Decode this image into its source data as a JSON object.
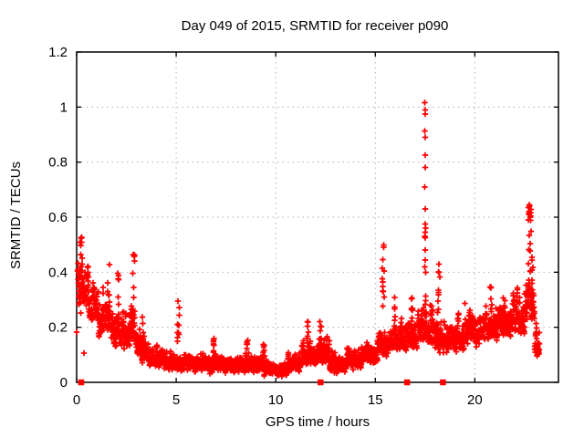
{
  "chart_data": {
    "type": "scatter",
    "title": "Day 049 of 2015, SRMTID for receiver p090",
    "xlabel": "GPS time / hours",
    "ylabel": "SRMTID / TECUs",
    "xlim": [
      0,
      24.2
    ],
    "ylim": [
      0,
      1.2
    ],
    "xticks": [
      0,
      5,
      10,
      15,
      20
    ],
    "xtick_labels": [
      "0",
      "5",
      "10",
      "15",
      "20"
    ],
    "yticks": [
      0,
      0.2,
      0.4,
      0.6,
      0.8,
      1.0,
      1.2
    ],
    "ytick_labels": [
      "0",
      "0.2",
      "0.4",
      "0.6",
      "0.8",
      "1",
      "1.2"
    ],
    "grid": "dashed",
    "legend": "none",
    "style": {
      "point_color": "#ff0000",
      "grid_color": "#b0b0b0",
      "border_color": "#000000",
      "text_color": "#000000",
      "background": "#ffffff",
      "marker": "plus",
      "zero_marker": "filled-square"
    },
    "scatter_model": {
      "seed": 42,
      "comment_band_segments": "each entry: [hour_start, hour_end, band_low_TECU, band_high_TECU, n_points]",
      "segments": [
        [
          0.05,
          0.6,
          0.26,
          0.5,
          70
        ],
        [
          0.6,
          1.1,
          0.2,
          0.42,
          70
        ],
        [
          1.1,
          1.7,
          0.14,
          0.38,
          80
        ],
        [
          1.7,
          2.3,
          0.11,
          0.33,
          80
        ],
        [
          2.3,
          3.0,
          0.1,
          0.34,
          90
        ],
        [
          3.0,
          3.6,
          0.07,
          0.22,
          80
        ],
        [
          3.6,
          4.4,
          0.05,
          0.16,
          100
        ],
        [
          4.4,
          5.4,
          0.04,
          0.13,
          120
        ],
        [
          5.4,
          6.4,
          0.035,
          0.12,
          120
        ],
        [
          6.4,
          7.4,
          0.03,
          0.12,
          120
        ],
        [
          7.4,
          8.4,
          0.03,
          0.11,
          120
        ],
        [
          8.4,
          9.4,
          0.03,
          0.12,
          120
        ],
        [
          9.4,
          10.6,
          0.02,
          0.09,
          140
        ],
        [
          10.6,
          11.3,
          0.03,
          0.12,
          90
        ],
        [
          11.3,
          12.1,
          0.05,
          0.17,
          100
        ],
        [
          12.1,
          12.7,
          0.05,
          0.19,
          70
        ],
        [
          12.7,
          13.5,
          0.03,
          0.12,
          100
        ],
        [
          13.5,
          14.3,
          0.04,
          0.14,
          100
        ],
        [
          14.3,
          15.1,
          0.06,
          0.18,
          100
        ],
        [
          15.1,
          15.7,
          0.08,
          0.22,
          70
        ],
        [
          15.7,
          16.5,
          0.1,
          0.26,
          90
        ],
        [
          16.5,
          17.3,
          0.11,
          0.3,
          90
        ],
        [
          17.3,
          17.9,
          0.12,
          0.35,
          70
        ],
        [
          17.9,
          18.7,
          0.09,
          0.3,
          90
        ],
        [
          18.7,
          19.5,
          0.1,
          0.28,
          90
        ],
        [
          19.5,
          20.3,
          0.12,
          0.3,
          90
        ],
        [
          20.3,
          21.1,
          0.13,
          0.32,
          90
        ],
        [
          21.1,
          21.9,
          0.15,
          0.34,
          90
        ],
        [
          21.9,
          22.5,
          0.16,
          0.36,
          70
        ],
        [
          22.5,
          23.0,
          0.2,
          0.42,
          60
        ],
        [
          23.0,
          23.25,
          0.08,
          0.25,
          30
        ]
      ],
      "comment_bursts": "each entry: [hour_center, width_hours, top_TECU, n_points]",
      "bursts": [
        [
          0.2,
          0.18,
          0.55,
          14
        ],
        [
          1.6,
          0.12,
          0.43,
          10
        ],
        [
          2.1,
          0.1,
          0.4,
          8
        ],
        [
          2.85,
          0.12,
          0.47,
          10
        ],
        [
          3.3,
          0.1,
          0.26,
          8
        ],
        [
          5.1,
          0.12,
          0.3,
          10
        ],
        [
          6.9,
          0.1,
          0.19,
          8
        ],
        [
          8.6,
          0.1,
          0.17,
          8
        ],
        [
          9.4,
          0.08,
          0.15,
          6
        ],
        [
          11.6,
          0.1,
          0.25,
          8
        ],
        [
          12.25,
          0.1,
          0.23,
          8
        ],
        [
          15.4,
          0.1,
          0.52,
          12
        ],
        [
          16.0,
          0.1,
          0.31,
          8
        ],
        [
          16.85,
          0.1,
          0.36,
          8
        ],
        [
          18.2,
          0.1,
          0.43,
          10
        ],
        [
          20.8,
          0.1,
          0.36,
          8
        ],
        [
          21.4,
          0.1,
          0.4,
          8
        ],
        [
          22.75,
          0.18,
          0.65,
          26
        ],
        [
          22.9,
          0.08,
          0.5,
          10
        ]
      ],
      "comment_outliers": "explicit isolated points [hour, TECU]; includes the big spike column at ~17.5 h reaching 1.02",
      "outliers": [
        [
          0.0,
          0.182
        ],
        [
          0.37,
          0.106
        ],
        [
          17.49,
          1.016
        ],
        [
          17.5,
          0.99
        ],
        [
          17.5,
          0.975
        ],
        [
          17.48,
          0.913
        ],
        [
          17.5,
          0.89
        ],
        [
          17.51,
          0.825
        ],
        [
          17.5,
          0.78
        ],
        [
          17.49,
          0.71
        ],
        [
          17.5,
          0.63
        ],
        [
          17.5,
          0.575
        ],
        [
          17.52,
          0.56
        ],
        [
          17.5,
          0.545
        ],
        [
          17.49,
          0.53
        ],
        [
          17.5,
          0.525
        ],
        [
          17.51,
          0.48
        ],
        [
          17.5,
          0.445
        ],
        [
          17.48,
          0.42
        ],
        [
          17.53,
          0.4
        ]
      ],
      "comment_zero_squares": "filled red squares sitting on y=0 baseline at these hours",
      "zero_squares": [
        0.23,
        12.25,
        16.6,
        18.4
      ]
    }
  }
}
